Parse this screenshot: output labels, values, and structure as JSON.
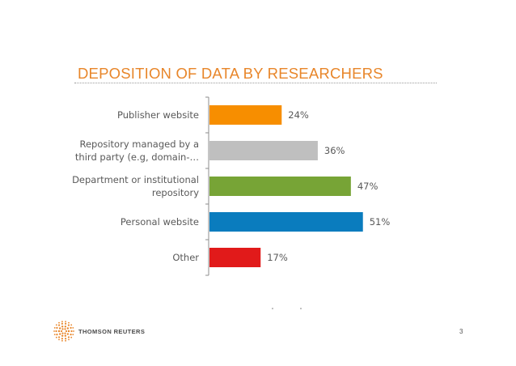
{
  "slide": {
    "title": "DEPOSITION OF DATA BY RESEARCHERS",
    "page_number": "3",
    "logo_text": "THOMSON REUTERS",
    "colors": {
      "title": "#E8862A",
      "tick_text": "#595959",
      "axis": "#8c8c8c"
    }
  },
  "chart_data": {
    "type": "bar",
    "orientation": "horizontal",
    "categories": [
      [
        "Publisher website"
      ],
      [
        "Repository managed by a",
        "third party (e.g, domain-…"
      ],
      [
        "Department or institutional",
        "repository"
      ],
      [
        "Personal website"
      ],
      [
        "Other"
      ]
    ],
    "values": [
      24,
      36,
      47,
      51,
      17
    ],
    "value_labels": [
      "24%",
      "36%",
      "47%",
      "51%",
      "17%"
    ],
    "bar_colors": [
      "#F78E00",
      "#BFBFBF",
      "#77A436",
      "#0A7CBE",
      "#E11A1A"
    ],
    "xlim": [
      0,
      100
    ],
    "grid": false,
    "legend": "none"
  }
}
